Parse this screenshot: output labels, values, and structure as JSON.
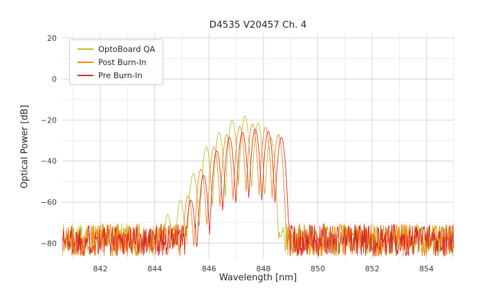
{
  "chart_data": {
    "type": "line",
    "title": "D4535 V20457 Ch. 4",
    "xlabel": "Wavelength [nm]",
    "ylabel": "Optical Power [dB]",
    "xlim": [
      840.6,
      855.0
    ],
    "ylim": [
      -88,
      22
    ],
    "x_ticks": [
      842,
      844,
      846,
      848,
      850,
      852,
      854
    ],
    "y_ticks": [
      20,
      0,
      -20,
      -40,
      -60,
      -80
    ],
    "x_minor_step": 1,
    "y_minor_step": 10,
    "grid": true,
    "grid_colors": {
      "minor": "#e6e6e6",
      "major": "#d6d6d6"
    },
    "legend_position": "upper-left",
    "noise_floor": {
      "mean": -78.5,
      "spread": 8
    },
    "mode_spacing": 0.475,
    "dip_depth": 34,
    "sample_step": 0.02,
    "series": [
      {
        "name": "OptoBoard QA",
        "color": "#bcbd22",
        "seed": 7,
        "modes": [
          {
            "x": 844.48,
            "y": -66
          },
          {
            "x": 844.95,
            "y": -59
          },
          {
            "x": 845.42,
            "y": -46
          },
          {
            "x": 845.9,
            "y": -33
          },
          {
            "x": 846.37,
            "y": -26
          },
          {
            "x": 846.85,
            "y": -20
          },
          {
            "x": 847.32,
            "y": -18
          },
          {
            "x": 847.8,
            "y": -21.5
          },
          {
            "x": 848.27,
            "y": -28.5
          }
        ]
      },
      {
        "name": "Post Burn-In",
        "color": "#ff7f0e",
        "seed": 42,
        "modes": [
          {
            "x": 845.23,
            "y": -57
          },
          {
            "x": 845.7,
            "y": -44
          },
          {
            "x": 846.18,
            "y": -33
          },
          {
            "x": 846.65,
            "y": -27
          },
          {
            "x": 847.13,
            "y": -23
          },
          {
            "x": 847.6,
            "y": -22
          },
          {
            "x": 848.08,
            "y": -23.5
          },
          {
            "x": 848.55,
            "y": -27
          }
        ]
      },
      {
        "name": "Pre Burn-In",
        "color": "#d62728",
        "seed": 1337,
        "modes": [
          {
            "x": 845.33,
            "y": -59
          },
          {
            "x": 845.8,
            "y": -47
          },
          {
            "x": 846.28,
            "y": -35
          },
          {
            "x": 846.75,
            "y": -28.5
          },
          {
            "x": 847.23,
            "y": -26
          },
          {
            "x": 847.7,
            "y": -24.5
          },
          {
            "x": 848.18,
            "y": -25.5
          },
          {
            "x": 848.66,
            "y": -28.5
          }
        ]
      }
    ]
  }
}
